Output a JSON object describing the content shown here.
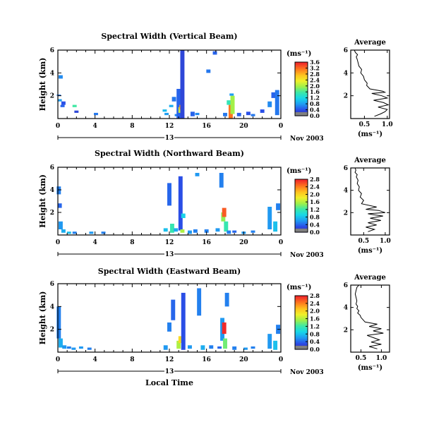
{
  "chart_data": [
    {
      "type": "heatmap",
      "title": "Spectral Width (Vertical Beam)",
      "ylabel": "Height (km)",
      "xticks": [
        "0",
        "4",
        "8",
        "12",
        "16",
        "20",
        "0"
      ],
      "yticks": [
        "2",
        "4",
        "6"
      ],
      "xlim": [
        0,
        24
      ],
      "ylim": [
        0,
        6
      ],
      "date_day": "13",
      "date_label": "Nov 2003",
      "colorbar": {
        "unit": "(ms⁻¹)",
        "ticks": [
          "0.0",
          "0.4",
          "0.8",
          "1.2",
          "1.6",
          "2.0",
          "2.4",
          "2.8",
          "3.2",
          "3.6"
        ],
        "range": [
          0,
          3.6
        ]
      },
      "cells": [
        [
          0.1,
          2.0,
          2.1,
          0.6
        ],
        [
          0.2,
          1.5,
          1.7,
          0.8
        ],
        [
          0.5,
          1.0,
          1.2,
          0.5
        ],
        [
          0.3,
          3.5,
          3.8,
          0.7
        ],
        [
          0.6,
          1.2,
          1.5,
          0.4
        ],
        [
          1.8,
          1.0,
          1.2,
          1.6
        ],
        [
          2.0,
          0.5,
          0.7,
          0.3
        ],
        [
          4.1,
          0.3,
          0.5,
          0.6
        ],
        [
          11.5,
          0.6,
          0.8,
          1.0
        ],
        [
          11.7,
          0.3,
          0.5,
          0.8
        ],
        [
          12.2,
          1.0,
          1.2,
          0.9
        ],
        [
          12.5,
          1.5,
          1.9,
          0.6
        ],
        [
          12.8,
          0.2,
          0.4,
          0.7
        ],
        [
          13.0,
          0.0,
          2.6,
          0.5
        ],
        [
          13.2,
          0.5,
          1.0,
          2.2
        ],
        [
          13.3,
          0.8,
          1.2,
          3.0
        ],
        [
          13.4,
          0.0,
          6.0,
          0.3
        ],
        [
          14.5,
          0.2,
          0.6,
          0.5
        ],
        [
          15.0,
          0.3,
          0.5,
          0.7
        ],
        [
          16.2,
          4.0,
          4.3,
          0.6
        ],
        [
          16.9,
          5.6,
          5.9,
          0.5
        ],
        [
          18.0,
          0.2,
          0.5,
          0.6
        ],
        [
          18.4,
          1.2,
          1.6,
          1.5
        ],
        [
          18.6,
          0.0,
          1.2,
          3.2
        ],
        [
          18.8,
          0.4,
          2.0,
          2.0
        ],
        [
          18.7,
          2.0,
          2.2,
          0.8
        ],
        [
          19.5,
          0.2,
          0.5,
          0.5
        ],
        [
          20.5,
          0.3,
          0.6,
          0.4
        ],
        [
          21.0,
          0.2,
          0.4,
          0.6
        ],
        [
          22.0,
          0.5,
          0.8,
          0.4
        ],
        [
          22.8,
          1.0,
          1.5,
          0.7
        ],
        [
          23.2,
          1.8,
          2.3,
          0.5
        ],
        [
          23.6,
          0.3,
          2.5,
          0.6
        ]
      ]
    },
    {
      "type": "heatmap",
      "title": "Spectral Width (Northward Beam)",
      "ylabel": "Height (km)",
      "xticks": [
        "0",
        "4",
        "8",
        "12",
        "16",
        "20",
        "0"
      ],
      "yticks": [
        "2",
        "4",
        "6"
      ],
      "xlim": [
        0,
        24
      ],
      "ylim": [
        0,
        6
      ],
      "date_day": "13",
      "date_label": "Nov 2003",
      "colorbar": {
        "unit": "(ms⁻¹)",
        "ticks": [
          "0.0",
          "0.4",
          "0.8",
          "1.2",
          "1.6",
          "2.0",
          "2.4",
          "2.8"
        ],
        "range": [
          0,
          2.8
        ]
      },
      "cells": [
        [
          0.1,
          3.6,
          4.3,
          0.5
        ],
        [
          0.2,
          2.4,
          2.8,
          0.4
        ],
        [
          0.3,
          0.5,
          1.2,
          0.6
        ],
        [
          0.6,
          0.2,
          0.5,
          0.7
        ],
        [
          1.2,
          0.1,
          0.3,
          0.8
        ],
        [
          1.8,
          0.1,
          0.3,
          0.5
        ],
        [
          3.6,
          0.1,
          0.3,
          0.6
        ],
        [
          4.9,
          0.1,
          0.3,
          0.5
        ],
        [
          11.6,
          0.3,
          0.6,
          0.8
        ],
        [
          12.0,
          2.6,
          4.6,
          0.4
        ],
        [
          12.3,
          0.2,
          1.0,
          1.2
        ],
        [
          12.7,
          0.3,
          0.6,
          0.7
        ],
        [
          13.2,
          0.4,
          5.2,
          0.3
        ],
        [
          13.4,
          0.2,
          0.5,
          1.6
        ],
        [
          13.5,
          1.5,
          1.9,
          0.9
        ],
        [
          14.2,
          0.1,
          0.4,
          0.6
        ],
        [
          14.8,
          0.2,
          0.5,
          0.5
        ],
        [
          15.0,
          5.2,
          5.5,
          0.6
        ],
        [
          16.0,
          0.2,
          0.5,
          0.5
        ],
        [
          17.2,
          0.3,
          0.6,
          0.6
        ],
        [
          17.6,
          4.2,
          5.5,
          0.5
        ],
        [
          17.8,
          1.2,
          2.0,
          1.5
        ],
        [
          17.9,
          1.6,
          2.4,
          2.6
        ],
        [
          18.1,
          0.3,
          1.2,
          1.2
        ],
        [
          18.4,
          0.1,
          0.4,
          0.5
        ],
        [
          19.0,
          0.2,
          0.4,
          0.4
        ],
        [
          20.0,
          0.1,
          0.3,
          0.6
        ],
        [
          21.0,
          0.2,
          0.4,
          0.5
        ],
        [
          22.8,
          0.5,
          2.5,
          0.6
        ],
        [
          23.4,
          0.3,
          1.2,
          0.8
        ],
        [
          23.7,
          2.2,
          2.8,
          0.5
        ]
      ]
    },
    {
      "type": "heatmap",
      "title": "Spectral Width (Eastward Beam)",
      "ylabel": "Height (km)",
      "xlabel": "Local Time",
      "xticks": [
        "0",
        "4",
        "8",
        "12",
        "16",
        "20",
        "0"
      ],
      "yticks": [
        "2",
        "4",
        "6"
      ],
      "xlim": [
        0,
        24
      ],
      "ylim": [
        0,
        6
      ],
      "date_day": "13",
      "date_label": "Nov 2003",
      "colorbar": {
        "unit": "(ms⁻¹)",
        "ticks": [
          "0.0",
          "0.4",
          "0.8",
          "1.2",
          "1.6",
          "2.0",
          "2.4",
          "2.8"
        ],
        "range": [
          0,
          2.8
        ]
      },
      "cells": [
        [
          0.1,
          1.2,
          4.0,
          0.5
        ],
        [
          0.3,
          0.4,
          1.2,
          0.7
        ],
        [
          0.7,
          0.3,
          0.6,
          0.6
        ],
        [
          1.2,
          0.3,
          0.5,
          0.5
        ],
        [
          1.7,
          0.2,
          0.4,
          0.6
        ],
        [
          2.5,
          0.3,
          0.5,
          0.6
        ],
        [
          3.4,
          0.2,
          0.4,
          0.5
        ],
        [
          11.6,
          0.2,
          0.6,
          0.6
        ],
        [
          12.0,
          1.8,
          2.6,
          0.5
        ],
        [
          12.4,
          2.8,
          4.6,
          0.4
        ],
        [
          13.0,
          0.3,
          1.0,
          1.6
        ],
        [
          13.2,
          0.8,
          1.4,
          2.0
        ],
        [
          13.5,
          0.2,
          5.2,
          0.3
        ],
        [
          14.2,
          0.3,
          0.6,
          0.6
        ],
        [
          15.2,
          3.2,
          5.6,
          0.5
        ],
        [
          15.6,
          0.2,
          0.6,
          0.7
        ],
        [
          16.5,
          0.3,
          0.6,
          0.5
        ],
        [
          17.4,
          0.3,
          0.5,
          0.4
        ],
        [
          17.7,
          1.0,
          3.0,
          0.6
        ],
        [
          17.9,
          1.6,
          2.6,
          2.8
        ],
        [
          18.0,
          0.3,
          1.2,
          1.4
        ],
        [
          18.2,
          4.0,
          5.2,
          0.5
        ],
        [
          19.0,
          0.2,
          0.5,
          0.5
        ],
        [
          20.2,
          0.2,
          0.4,
          0.6
        ],
        [
          21.0,
          0.3,
          0.5,
          0.5
        ],
        [
          22.8,
          0.3,
          1.6,
          0.6
        ],
        [
          23.4,
          0.2,
          1.0,
          0.8
        ],
        [
          23.7,
          1.6,
          2.4,
          0.5
        ]
      ]
    },
    {
      "type": "line",
      "title": "Average",
      "xlabel": "(ms⁻¹)",
      "xticks": [
        "0.5",
        "1.0"
      ],
      "yticks": [
        "2",
        "4",
        "6"
      ],
      "xlim": [
        0.2,
        1.05
      ],
      "ylim": [
        0,
        6
      ],
      "x": [
        0.72,
        0.85,
        0.95,
        1.0,
        0.8,
        1.02,
        0.92,
        0.7,
        1.0,
        0.88,
        0.66,
        0.95,
        0.9,
        0.62,
        0.55,
        0.56,
        0.5,
        0.48,
        0.42,
        0.44,
        0.38,
        0.36,
        0.34,
        0.32,
        0.35,
        0.3,
        0.28
      ],
      "y": [
        0.2,
        0.4,
        0.6,
        0.8,
        1.0,
        1.2,
        1.4,
        1.6,
        1.8,
        2.0,
        2.2,
        2.3,
        2.4,
        2.6,
        2.9,
        3.1,
        3.4,
        3.7,
        4.0,
        4.3,
        4.6,
        4.9,
        5.2,
        5.4,
        5.6,
        5.8,
        6.0
      ]
    },
    {
      "type": "line",
      "title": "Average",
      "xlabel": "(ms⁻¹)",
      "xticks": [
        "0.5",
        "1.0"
      ],
      "yticks": [
        "2",
        "4",
        "6"
      ],
      "xlim": [
        0.2,
        1.1
      ],
      "ylim": [
        0,
        6
      ],
      "x": [
        0.6,
        0.75,
        0.55,
        0.8,
        0.6,
        0.9,
        0.65,
        0.95,
        0.75,
        0.6,
        1.0,
        0.85,
        0.55,
        0.8,
        0.45,
        0.5,
        0.42,
        0.45,
        0.38,
        0.4,
        0.35,
        0.37,
        0.33,
        0.35,
        0.3,
        0.32,
        0.3
      ],
      "y": [
        0.3,
        0.5,
        0.7,
        0.9,
        1.1,
        1.3,
        1.5,
        1.7,
        1.8,
        1.9,
        2.0,
        2.2,
        2.3,
        2.5,
        2.8,
        3.1,
        3.4,
        3.7,
        4.0,
        4.3,
        4.6,
        4.9,
        5.2,
        5.4,
        5.6,
        5.8,
        6.0
      ]
    },
    {
      "type": "line",
      "title": "Average",
      "xlabel": "(ms⁻¹)",
      "xticks": [
        "0.5",
        "1.0"
      ],
      "yticks": [
        "2",
        "4",
        "6"
      ],
      "xlim": [
        0.25,
        1.2
      ],
      "ylim": [
        0,
        6
      ],
      "x": [
        0.9,
        0.7,
        1.0,
        0.75,
        0.95,
        0.8,
        0.65,
        1.05,
        0.8,
        1.0,
        0.7,
        0.9,
        0.6,
        0.55,
        0.5,
        0.48,
        0.42,
        0.45,
        0.4,
        0.42,
        0.38,
        0.4,
        0.38,
        0.36,
        0.38,
        0.4,
        0.45
      ],
      "y": [
        0.3,
        0.5,
        0.7,
        0.9,
        1.1,
        1.3,
        1.5,
        1.7,
        1.9,
        2.1,
        2.3,
        2.5,
        2.7,
        2.9,
        3.1,
        3.3,
        3.5,
        3.7,
        3.9,
        4.1,
        4.3,
        4.6,
        4.9,
        5.2,
        5.5,
        5.8,
        6.0
      ]
    }
  ]
}
